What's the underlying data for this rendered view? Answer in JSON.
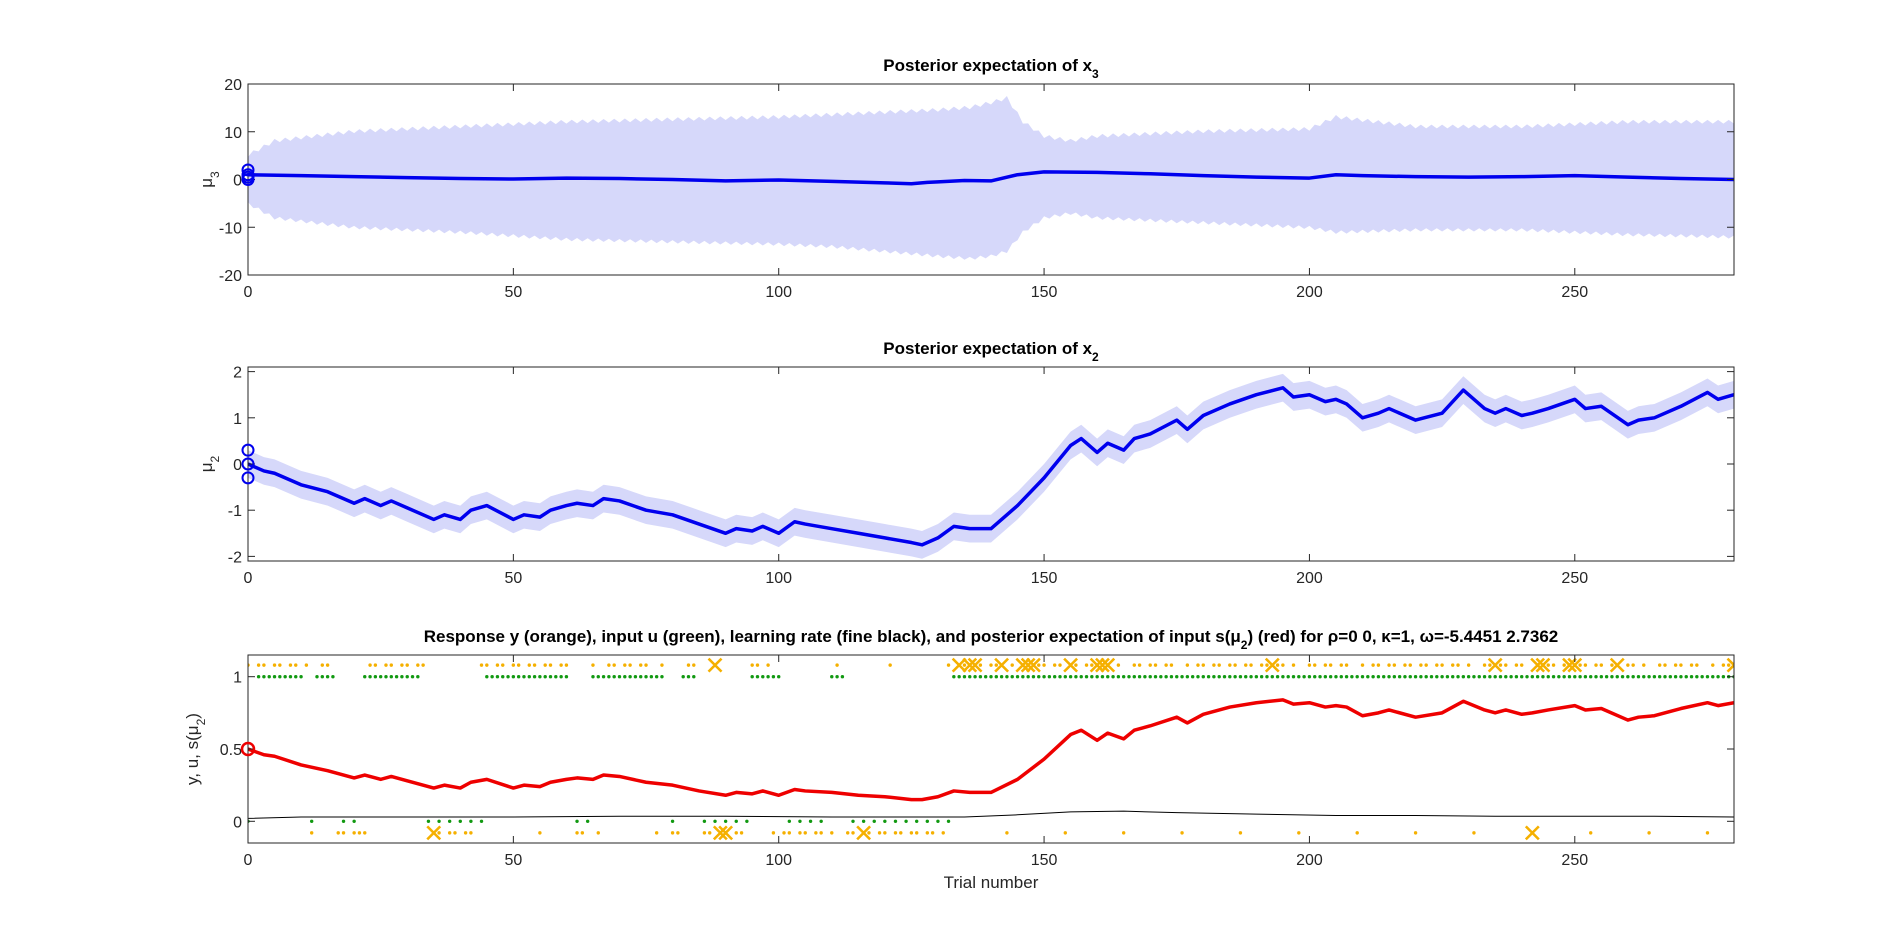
{
  "chart_data": [
    {
      "type": "line",
      "title_parts": [
        "Posterior expectation of x",
        "3"
      ],
      "ylabel_parts": [
        "μ",
        "3"
      ],
      "xlim": [
        0,
        280
      ],
      "ylim": [
        -20,
        20
      ],
      "xticks": [
        0,
        50,
        100,
        150,
        200,
        250
      ],
      "yticks": [
        -20,
        -10,
        0,
        10,
        20
      ],
      "grid": false,
      "colors": {
        "mean": "#0000ee",
        "band": "#d6d8fa"
      },
      "series": [
        {
          "x": [
            0,
            10,
            20,
            30,
            40,
            50,
            60,
            70,
            80,
            90,
            100,
            110,
            120,
            125,
            128,
            130,
            135,
            140,
            145,
            150,
            160,
            170,
            180,
            190,
            200,
            205,
            210,
            220,
            230,
            240,
            250,
            260,
            270,
            280
          ],
          "values": [
            1.0,
            0.8,
            0.6,
            0.4,
            0.2,
            0.1,
            0.3,
            0.2,
            0.0,
            -0.3,
            -0.1,
            -0.4,
            -0.7,
            -0.9,
            -0.6,
            -0.5,
            -0.2,
            -0.3,
            1.0,
            1.6,
            1.5,
            1.2,
            0.8,
            0.5,
            0.3,
            1.0,
            0.8,
            0.6,
            0.5,
            0.6,
            0.8,
            0.5,
            0.2,
            0.0
          ]
        }
      ],
      "band_upper": {
        "x": [
          0,
          5,
          20,
          40,
          60,
          80,
          100,
          110,
          120,
          130,
          136,
          140,
          143,
          146,
          150,
          155,
          160,
          180,
          200,
          205,
          220,
          240,
          260,
          280
        ],
        "values": [
          5,
          8,
          10,
          11,
          12,
          12.5,
          13,
          13.5,
          14,
          14.5,
          15,
          16,
          17,
          12,
          9,
          8,
          9,
          10,
          10.5,
          13,
          11,
          11,
          12,
          12
        ]
      },
      "band_lower": {
        "x": [
          0,
          5,
          20,
          40,
          60,
          80,
          100,
          110,
          120,
          130,
          136,
          140,
          143,
          146,
          150,
          155,
          160,
          180,
          200,
          205,
          220,
          240,
          260,
          280
        ],
        "values": [
          -5,
          -8,
          -10,
          -11,
          -12.5,
          -13,
          -13.5,
          -14,
          -15,
          -16,
          -16.5,
          -16,
          -15,
          -11,
          -8,
          -7,
          -8,
          -9,
          -10,
          -11,
          -10.5,
          -10.5,
          -11.5,
          -12
        ]
      },
      "prior_markers": [
        0.0,
        0.5,
        1.0,
        2.0
      ]
    },
    {
      "type": "line",
      "title_parts": [
        "Posterior expectation of x",
        "2"
      ],
      "ylabel_parts": [
        "μ",
        "2"
      ],
      "xlim": [
        0,
        280
      ],
      "ylim": [
        -2.1,
        2.1
      ],
      "xticks": [
        0,
        50,
        100,
        150,
        200,
        250
      ],
      "yticks": [
        -2,
        -1,
        0,
        1,
        2
      ],
      "grid": false,
      "colors": {
        "mean": "#0000ee",
        "band": "#d6d8fa"
      },
      "series": [
        {
          "x": [
            0,
            3,
            5,
            10,
            15,
            20,
            22,
            25,
            27,
            30,
            35,
            37,
            40,
            42,
            45,
            50,
            52,
            55,
            57,
            60,
            62,
            65,
            67,
            70,
            75,
            80,
            85,
            90,
            92,
            95,
            97,
            100,
            103,
            105,
            110,
            115,
            120,
            125,
            127,
            130,
            133,
            136,
            140,
            145,
            150,
            155,
            157,
            160,
            162,
            165,
            167,
            170,
            175,
            177,
            180,
            185,
            190,
            195,
            197,
            200,
            203,
            205,
            207,
            210,
            213,
            215,
            220,
            225,
            229,
            233,
            235,
            237,
            240,
            242,
            245,
            250,
            252,
            255,
            260,
            262,
            265,
            270,
            275,
            277,
            280
          ],
          "values": [
            0,
            -0.15,
            -0.2,
            -0.45,
            -0.6,
            -0.85,
            -0.75,
            -0.9,
            -0.8,
            -0.95,
            -1.2,
            -1.1,
            -1.2,
            -1.0,
            -0.9,
            -1.2,
            -1.1,
            -1.15,
            -1.0,
            -0.9,
            -0.85,
            -0.9,
            -0.75,
            -0.8,
            -1.0,
            -1.1,
            -1.3,
            -1.5,
            -1.4,
            -1.45,
            -1.35,
            -1.5,
            -1.25,
            -1.3,
            -1.4,
            -1.5,
            -1.6,
            -1.7,
            -1.75,
            -1.6,
            -1.35,
            -1.4,
            -1.4,
            -0.9,
            -0.3,
            0.4,
            0.55,
            0.25,
            0.45,
            0.3,
            0.55,
            0.65,
            0.95,
            0.75,
            1.05,
            1.3,
            1.5,
            1.65,
            1.45,
            1.5,
            1.35,
            1.4,
            1.3,
            1.0,
            1.1,
            1.2,
            0.95,
            1.1,
            1.6,
            1.2,
            1.1,
            1.2,
            1.05,
            1.1,
            1.2,
            1.4,
            1.2,
            1.25,
            0.85,
            0.95,
            1.0,
            1.25,
            1.55,
            1.4,
            1.5
          ]
        }
      ],
      "band_halfwidth": 0.3,
      "prior_markers": [
        -0.3,
        0.0,
        0.3
      ]
    },
    {
      "type": "line",
      "title_parts": [
        "Response y (orange), input u (green), learning rate (fine black), and posterior expectation of input s(μ",
        "2",
        ") (red) for ρ=0  0, κ=1, ω=-5.4451      2.7362"
      ],
      "ylabel_parts": [
        "y, u, s(μ",
        "2",
        ")"
      ],
      "xlabel": "Trial number",
      "xlim": [
        0,
        280
      ],
      "ylim": [
        -0.15,
        1.15
      ],
      "xticks": [
        0,
        50,
        100,
        150,
        200,
        250
      ],
      "yticks": [
        0,
        0.5,
        1
      ],
      "grid": false,
      "colors": {
        "posterior": "#ee0000",
        "learning_rate": "#000000",
        "input": "#119911",
        "response": "#f5b000"
      },
      "series": [
        {
          "name": "posterior expectation of input s(μ2)",
          "x": [
            0,
            3,
            5,
            10,
            15,
            20,
            22,
            25,
            27,
            30,
            35,
            37,
            40,
            42,
            45,
            50,
            52,
            55,
            57,
            60,
            62,
            65,
            67,
            70,
            75,
            80,
            85,
            90,
            92,
            95,
            97,
            100,
            103,
            105,
            110,
            115,
            120,
            125,
            127,
            130,
            133,
            136,
            140,
            145,
            150,
            155,
            157,
            160,
            162,
            165,
            167,
            170,
            175,
            177,
            180,
            185,
            190,
            195,
            197,
            200,
            203,
            205,
            207,
            210,
            213,
            215,
            220,
            225,
            229,
            233,
            235,
            237,
            240,
            242,
            245,
            250,
            252,
            255,
            260,
            262,
            265,
            270,
            275,
            277,
            280
          ],
          "values": [
            0.5,
            0.46,
            0.45,
            0.39,
            0.35,
            0.3,
            0.32,
            0.29,
            0.31,
            0.28,
            0.23,
            0.25,
            0.23,
            0.27,
            0.29,
            0.23,
            0.25,
            0.24,
            0.27,
            0.29,
            0.3,
            0.29,
            0.32,
            0.31,
            0.27,
            0.25,
            0.21,
            0.18,
            0.2,
            0.19,
            0.21,
            0.18,
            0.22,
            0.21,
            0.2,
            0.18,
            0.17,
            0.15,
            0.15,
            0.17,
            0.21,
            0.2,
            0.2,
            0.29,
            0.43,
            0.6,
            0.63,
            0.56,
            0.61,
            0.57,
            0.63,
            0.66,
            0.72,
            0.68,
            0.74,
            0.79,
            0.82,
            0.84,
            0.81,
            0.82,
            0.79,
            0.8,
            0.79,
            0.73,
            0.75,
            0.77,
            0.72,
            0.75,
            0.83,
            0.77,
            0.75,
            0.77,
            0.74,
            0.75,
            0.77,
            0.8,
            0.77,
            0.78,
            0.7,
            0.72,
            0.73,
            0.78,
            0.82,
            0.8,
            0.82
          ]
        },
        {
          "name": "learning rate",
          "x": [
            0,
            10,
            30,
            50,
            70,
            90,
            110,
            125,
            135,
            145,
            155,
            165,
            175,
            190,
            205,
            220,
            235,
            250,
            265,
            280
          ],
          "values": [
            0.02,
            0.03,
            0.03,
            0.03,
            0.035,
            0.035,
            0.03,
            0.03,
            0.03,
            0.045,
            0.065,
            0.07,
            0.06,
            0.05,
            0.04,
            0.04,
            0.035,
            0.035,
            0.035,
            0.03
          ]
        }
      ],
      "prior_marker": 0.5,
      "input_ones_ranges": [
        [
          2,
          4
        ],
        [
          5,
          10
        ],
        [
          13,
          16
        ],
        [
          22,
          32
        ],
        [
          45,
          60
        ],
        [
          65,
          78
        ],
        [
          82,
          84
        ],
        [
          95,
          100
        ],
        [
          110,
          112
        ],
        [
          133,
          280
        ]
      ],
      "response_x_trials": [
        35,
        88,
        89,
        90,
        116,
        134,
        136,
        137,
        142,
        146,
        147,
        148,
        155,
        160,
        161,
        162,
        193,
        235,
        242,
        243,
        244,
        249,
        250,
        258,
        280
      ]
    }
  ]
}
